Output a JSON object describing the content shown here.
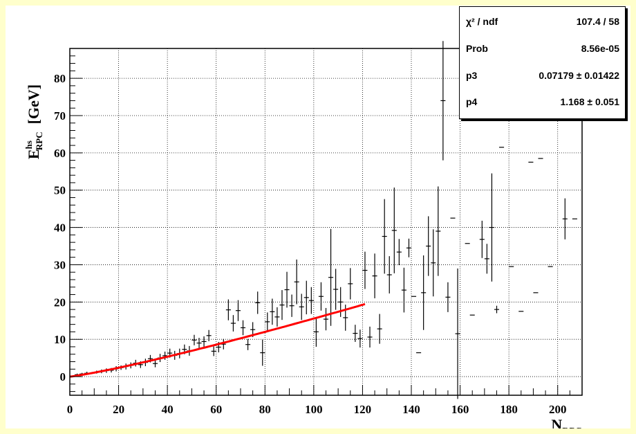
{
  "chart_data": {
    "type": "scatter",
    "xlabel": "N_RPC",
    "ylabel": "E^hs_RPC  [GeV]",
    "xlim": [
      0,
      210
    ],
    "ylim": [
      -5,
      88
    ],
    "x_ticks": [
      "0",
      "20",
      "40",
      "60",
      "80",
      "100",
      "120",
      "140",
      "160",
      "180",
      "200"
    ],
    "y_ticks": [
      "0",
      "10",
      "20",
      "30",
      "40",
      "50",
      "60",
      "70",
      "80"
    ],
    "grid": true,
    "stats": [
      {
        "name": "χ² / ndf",
        "value": "107.4 / 58"
      },
      {
        "name": "Prob",
        "value": "8.56e-05"
      },
      {
        "name": "p3",
        "value": "0.07179 ± 0.01422"
      },
      {
        "name": "p4",
        "value": "1.168 ± 0.051"
      }
    ],
    "fit": {
      "p3": 0.07179,
      "p4": 1.168,
      "x_range": [
        0,
        121
      ],
      "color": "#ff0000"
    },
    "points": [
      {
        "x": 3,
        "y": 0.5,
        "e": 0.3
      },
      {
        "x": 5,
        "y": 0.7,
        "e": 0.3
      },
      {
        "x": 7,
        "y": 0.9,
        "e": 0.4
      },
      {
        "x": 11,
        "y": 1.2,
        "e": 0.4
      },
      {
        "x": 13,
        "y": 1.4,
        "e": 0.5
      },
      {
        "x": 15,
        "y": 1.6,
        "e": 0.6
      },
      {
        "x": 17,
        "y": 1.7,
        "e": 0.6
      },
      {
        "x": 19,
        "y": 2.1,
        "e": 0.7
      },
      {
        "x": 21,
        "y": 2.4,
        "e": 0.6
      },
      {
        "x": 23,
        "y": 2.7,
        "e": 0.8
      },
      {
        "x": 25,
        "y": 3.0,
        "e": 0.8
      },
      {
        "x": 27,
        "y": 3.6,
        "e": 0.9
      },
      {
        "x": 29,
        "y": 3.2,
        "e": 0.9
      },
      {
        "x": 31,
        "y": 3.8,
        "e": 1.0
      },
      {
        "x": 33,
        "y": 4.8,
        "e": 1.0
      },
      {
        "x": 35,
        "y": 3.5,
        "e": 1.0
      },
      {
        "x": 37,
        "y": 5.0,
        "e": 1.1
      },
      {
        "x": 39,
        "y": 5.6,
        "e": 1.1
      },
      {
        "x": 41,
        "y": 6.3,
        "e": 1.2
      },
      {
        "x": 43,
        "y": 5.7,
        "e": 1.2
      },
      {
        "x": 45,
        "y": 6.2,
        "e": 1.3
      },
      {
        "x": 47,
        "y": 7.3,
        "e": 1.3
      },
      {
        "x": 49,
        "y": 6.9,
        "e": 1.3
      },
      {
        "x": 51,
        "y": 9.8,
        "e": 1.4
      },
      {
        "x": 53,
        "y": 9.0,
        "e": 1.4
      },
      {
        "x": 55,
        "y": 9.4,
        "e": 1.4
      },
      {
        "x": 57,
        "y": 11.0,
        "e": 1.5
      },
      {
        "x": 59,
        "y": 6.8,
        "e": 1.3
      },
      {
        "x": 61,
        "y": 7.9,
        "e": 1.4
      },
      {
        "x": 63,
        "y": 8.7,
        "e": 1.4
      },
      {
        "x": 65,
        "y": 17.9,
        "e": 2.8
      },
      {
        "x": 67,
        "y": 14.3,
        "e": 2.2
      },
      {
        "x": 69,
        "y": 17.7,
        "e": 2.8
      },
      {
        "x": 71,
        "y": 13.1,
        "e": 2.0
      },
      {
        "x": 73,
        "y": 8.6,
        "e": 1.5
      },
      {
        "x": 75,
        "y": 12.6,
        "e": 2.0
      },
      {
        "x": 77,
        "y": 19.8,
        "e": 3.0
      },
      {
        "x": 79,
        "y": 6.4,
        "e": 3.5
      },
      {
        "x": 81,
        "y": 14.7,
        "e": 2.5
      },
      {
        "x": 83,
        "y": 17.4,
        "e": 3.5
      },
      {
        "x": 85,
        "y": 16.0,
        "e": 2.6
      },
      {
        "x": 87,
        "y": 19.2,
        "e": 4.0
      },
      {
        "x": 89,
        "y": 23.3,
        "e": 4.8
      },
      {
        "x": 91,
        "y": 19.0,
        "e": 3.0
      },
      {
        "x": 93,
        "y": 25.4,
        "e": 6.0
      },
      {
        "x": 95,
        "y": 18.7,
        "e": 3.5
      },
      {
        "x": 97,
        "y": 21.2,
        "e": 4.5
      },
      {
        "x": 99,
        "y": 20.4,
        "e": 3.6
      },
      {
        "x": 101,
        "y": 12.0,
        "e": 4.0
      },
      {
        "x": 103,
        "y": 21.5,
        "e": 3.8
      },
      {
        "x": 105,
        "y": 15.4,
        "e": 3.0
      },
      {
        "x": 107,
        "y": 26.6,
        "e": 13.0
      },
      {
        "x": 109,
        "y": 23.4,
        "e": 5.5
      },
      {
        "x": 111,
        "y": 20.0,
        "e": 4.0
      },
      {
        "x": 113,
        "y": 15.8,
        "e": 3.5
      },
      {
        "x": 115,
        "y": 24.9,
        "e": 4.2
      },
      {
        "x": 117,
        "y": 11.6,
        "e": 2.3
      },
      {
        "x": 119,
        "y": 10.2,
        "e": 2.4
      },
      {
        "x": 121,
        "y": 28.5,
        "e": 5.0
      },
      {
        "x": 123,
        "y": 10.6,
        "e": 2.8
      },
      {
        "x": 125,
        "y": 27.0,
        "e": 6.0
      },
      {
        "x": 127,
        "y": 12.8,
        "e": 4.0
      },
      {
        "x": 129,
        "y": 37.6,
        "e": 10.0
      },
      {
        "x": 131,
        "y": 27.3,
        "e": 5.0
      },
      {
        "x": 133,
        "y": 39.2,
        "e": 11.5
      },
      {
        "x": 135,
        "y": 33.4,
        "e": 3.5
      },
      {
        "x": 137,
        "y": 23.2,
        "e": 6.0
      },
      {
        "x": 139,
        "y": 34.5,
        "e": 2.5
      },
      {
        "x": 141,
        "y": 21.5,
        "e": 0.0
      },
      {
        "x": 143,
        "y": 6.4,
        "e": 0.0
      },
      {
        "x": 145,
        "y": 22.5,
        "e": 10.0
      },
      {
        "x": 147,
        "y": 35.0,
        "e": 8.0
      },
      {
        "x": 149,
        "y": 30.5,
        "e": 9.0
      },
      {
        "x": 151,
        "y": 39.0,
        "e": 12.0
      },
      {
        "x": 153,
        "y": 74.0,
        "e": 16.0
      },
      {
        "x": 155,
        "y": 21.3,
        "e": 4.0
      },
      {
        "x": 157,
        "y": 42.5,
        "e": 0.0
      },
      {
        "x": 159,
        "y": 11.5,
        "e": 17.5
      },
      {
        "x": 163,
        "y": 35.7,
        "e": 0.0
      },
      {
        "x": 165,
        "y": 16.5,
        "e": 0.0
      },
      {
        "x": 169,
        "y": 36.8,
        "e": 5.0
      },
      {
        "x": 171,
        "y": 31.6,
        "e": 4.0
      },
      {
        "x": 173,
        "y": 40.0,
        "e": 14.5
      },
      {
        "x": 175,
        "y": 18.0,
        "e": 1.0
      },
      {
        "x": 177,
        "y": 61.5,
        "e": 0.0
      },
      {
        "x": 181,
        "y": 29.5,
        "e": 0.0
      },
      {
        "x": 185,
        "y": 17.5,
        "e": 0.0
      },
      {
        "x": 189,
        "y": 57.5,
        "e": 0.0
      },
      {
        "x": 191,
        "y": 22.5,
        "e": 0.0
      },
      {
        "x": 193,
        "y": 58.5,
        "e": 0.0
      },
      {
        "x": 197,
        "y": 29.5,
        "e": 0.0
      },
      {
        "x": 203,
        "y": 42.3,
        "e": 5.5
      },
      {
        "x": 207,
        "y": 42.3,
        "e": 0.0
      }
    ]
  }
}
